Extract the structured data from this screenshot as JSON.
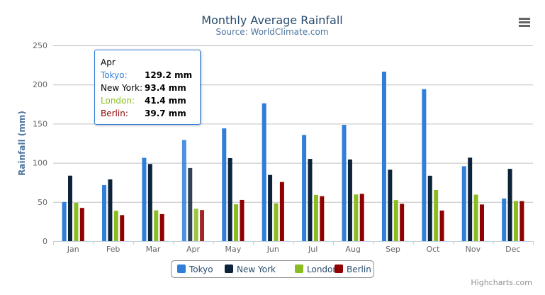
{
  "chart_data": {
    "type": "bar",
    "title": "Monthly Average Rainfall",
    "subtitle": "Source: WorldClimate.com",
    "ylabel": "Rainfall (mm)",
    "xlabel": "",
    "ylim": [
      0,
      250
    ],
    "yticks": [
      "0",
      "50",
      "100",
      "150",
      "200",
      "250"
    ],
    "grid": true,
    "legend_position": "bottom",
    "categories": [
      "Jan",
      "Feb",
      "Mar",
      "Apr",
      "May",
      "Jun",
      "Jul",
      "Aug",
      "Sep",
      "Oct",
      "Nov",
      "Dec"
    ],
    "series": [
      {
        "name": "Tokyo",
        "color": "#2f7ed8",
        "values": [
          49.9,
          71.5,
          106.4,
          129.2,
          144.0,
          176.0,
          135.6,
          148.5,
          216.4,
          194.1,
          95.6,
          54.4
        ]
      },
      {
        "name": "New York",
        "color": "#0d233a",
        "values": [
          83.6,
          78.8,
          98.5,
          93.4,
          106.0,
          84.5,
          105.0,
          104.3,
          91.2,
          83.5,
          106.6,
          92.3
        ]
      },
      {
        "name": "London",
        "color": "#8bbc21",
        "values": [
          48.9,
          38.8,
          39.3,
          41.4,
          47.0,
          48.3,
          59.0,
          59.6,
          52.4,
          65.2,
          59.3,
          51.2
        ]
      },
      {
        "name": "Berlin",
        "color": "#910000",
        "values": [
          42.4,
          33.2,
          34.5,
          39.7,
          52.6,
          75.5,
          57.4,
          60.4,
          47.6,
          39.1,
          46.8,
          51.1
        ]
      }
    ],
    "highlighted_category": "Apr",
    "tooltip": {
      "header": "Apr",
      "rows": [
        {
          "name": "Tokyo:",
          "value": "129.2 mm",
          "color": "#2f7ed8"
        },
        {
          "name": "New York:",
          "value": "93.4 mm",
          "color": "#000000"
        },
        {
          "name": "London:",
          "value": "41.4 mm",
          "color": "#8bbc21"
        },
        {
          "name": "Berlin:",
          "value": "39.7 mm",
          "color": "#910000"
        }
      ]
    }
  },
  "credits": "Highcharts.com",
  "menu_icon": "hamburger-menu-icon"
}
